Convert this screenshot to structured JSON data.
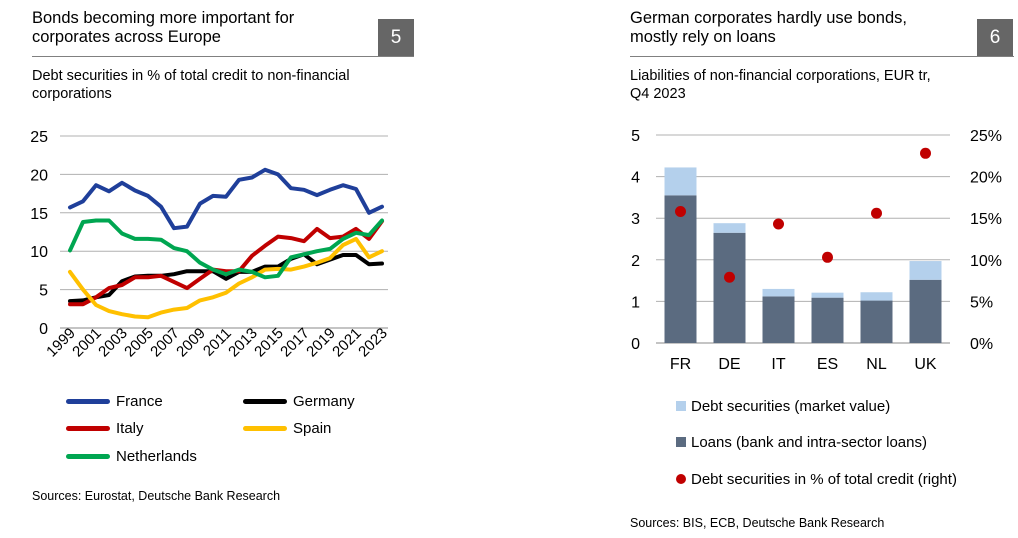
{
  "left": {
    "title_line1": "Bonds becoming more important for",
    "title_line2": "corporates across Europe",
    "number": "5",
    "subtitle_line1": "Debt securities in % of total credit to non-financial",
    "subtitle_line2": "corporations",
    "source": "Sources: Eurostat, Deutsche Bank Research"
  },
  "right": {
    "title_line1": "German corporates hardly use bonds,",
    "title_line2": "mostly rely on loans",
    "number": "6",
    "subtitle_line1": "Liabilities of non-financial corporations, EUR tr,",
    "subtitle_line2": "Q4 2023",
    "source": "Sources: BIS, ECB, Deutsche Bank Research"
  },
  "chart_data": [
    {
      "type": "line",
      "title": "Debt securities in % of total credit to non-financial corporations",
      "x": [
        1999,
        2000,
        2001,
        2002,
        2003,
        2004,
        2005,
        2006,
        2007,
        2008,
        2009,
        2010,
        2011,
        2012,
        2013,
        2014,
        2015,
        2016,
        2017,
        2018,
        2019,
        2020,
        2021,
        2022,
        2023
      ],
      "x_tick_labels": [
        "1999",
        "2001",
        "2003",
        "2005",
        "2007",
        "2009",
        "2011",
        "2013",
        "2015",
        "2017",
        "2019",
        "2021",
        "2023"
      ],
      "ylim": [
        0,
        25
      ],
      "y_ticks": [
        0,
        5,
        10,
        15,
        20,
        25
      ],
      "grid": true,
      "legend": "bottom",
      "series": [
        {
          "name": "France",
          "color": "#1F3F9A",
          "values": [
            15.7,
            16.5,
            18.6,
            17.8,
            18.9,
            17.9,
            17.2,
            15.8,
            13.0,
            13.2,
            16.2,
            17.2,
            17.1,
            19.3,
            19.6,
            20.6,
            20.0,
            18.2,
            18.0,
            17.3,
            18.0,
            18.6,
            18.1,
            15.0,
            15.8
          ]
        },
        {
          "name": "Germany",
          "color": "#000000",
          "values": [
            3.5,
            3.6,
            4.0,
            4.3,
            6.1,
            6.7,
            6.8,
            6.8,
            7.0,
            7.4,
            7.4,
            7.4,
            6.4,
            7.3,
            7.3,
            8.0,
            8.0,
            9.0,
            9.6,
            8.3,
            8.9,
            9.5,
            9.5,
            8.3,
            8.4
          ]
        },
        {
          "name": "Italy",
          "color": "#C00000",
          "values": [
            3.1,
            3.1,
            4.0,
            5.2,
            5.6,
            6.6,
            6.6,
            6.8,
            6.0,
            5.2,
            6.4,
            7.6,
            7.4,
            7.4,
            9.4,
            10.7,
            11.9,
            11.7,
            11.3,
            12.9,
            11.7,
            11.9,
            12.9,
            11.6,
            13.9
          ]
        },
        {
          "name": "Spain",
          "color": "#FFC000",
          "values": [
            7.3,
            5.0,
            3.0,
            2.2,
            1.8,
            1.5,
            1.4,
            2.0,
            2.4,
            2.6,
            3.6,
            4.0,
            4.6,
            5.8,
            6.6,
            7.6,
            7.7,
            7.6,
            8.0,
            8.5,
            9.1,
            10.8,
            11.6,
            9.2,
            10.0
          ]
        },
        {
          "name": "Netherlands",
          "color": "#00A651",
          "values": [
            10.1,
            13.8,
            14.0,
            14.0,
            12.3,
            11.6,
            11.6,
            11.5,
            10.4,
            10.0,
            8.5,
            7.6,
            7.0,
            7.6,
            7.3,
            6.6,
            6.8,
            9.2,
            9.6,
            10.0,
            10.3,
            11.6,
            12.4,
            12.1,
            14.0
          ]
        }
      ]
    },
    {
      "type": "bar",
      "title": "Liabilities of non-financial corporations, EUR tr, Q4 2023",
      "categories": [
        "FR",
        "DE",
        "IT",
        "ES",
        "NL",
        "UK"
      ],
      "ylim": [
        0,
        5
      ],
      "y_ticks": [
        0,
        1,
        2,
        3,
        4,
        5
      ],
      "y2lim": [
        0,
        25
      ],
      "y2_ticks": [
        "0%",
        "5%",
        "10%",
        "15%",
        "20%",
        "25%"
      ],
      "grid": true,
      "legend": "bottom",
      "series": [
        {
          "name": "Loans (bank and intra-sector loans)",
          "color": "#5B6B80",
          "kind": "stacked-bar",
          "values": [
            3.55,
            2.65,
            1.12,
            1.09,
            1.02,
            1.52
          ]
        },
        {
          "name": "Debt securities (market value)",
          "color": "#B4D0EC",
          "kind": "stacked-bar",
          "values": [
            0.67,
            0.23,
            0.18,
            0.12,
            0.2,
            0.45
          ]
        },
        {
          "name": "Debt securities in % of total credit (right)",
          "color": "#C00000",
          "kind": "dot",
          "axis": "right",
          "values": [
            15.8,
            7.9,
            14.3,
            10.3,
            15.6,
            22.8
          ]
        }
      ]
    }
  ]
}
